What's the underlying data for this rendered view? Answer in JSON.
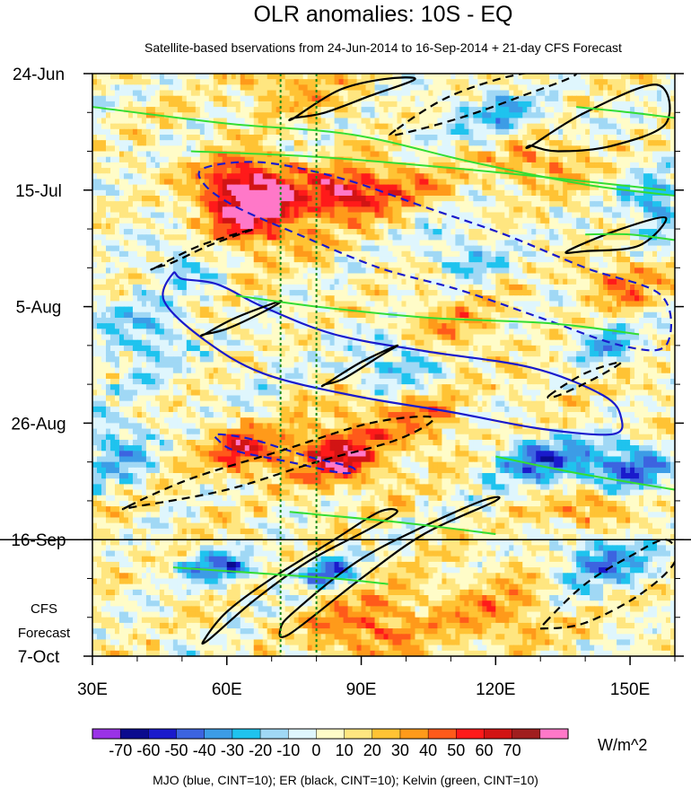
{
  "chart_data": {
    "type": "heatmap",
    "title": "OLR anomalies: 10S - EQ",
    "subtitle": "Satellite-based bservations from 24-Jun-2014 to 16-Sep-2014 + 21-day CFS Forecast",
    "xlabel": "",
    "ylabel": "",
    "x_range": [
      30,
      160
    ],
    "y_range": [
      0,
      105
    ],
    "y_unit": "days since 24-Jun-2014",
    "x_ticks": [
      {
        "value": 30,
        "label": "30E"
      },
      {
        "value": 60,
        "label": "60E"
      },
      {
        "value": 90,
        "label": "90E"
      },
      {
        "value": 120,
        "label": "120E"
      },
      {
        "value": 150,
        "label": "150E"
      }
    ],
    "y_ticks": [
      {
        "value": 0,
        "label": "24-Jun"
      },
      {
        "value": 21,
        "label": "15-Jul"
      },
      {
        "value": 42,
        "label": "5-Aug"
      },
      {
        "value": 63,
        "label": "26-Aug"
      },
      {
        "value": 84,
        "label": "16-Sep"
      },
      {
        "value": 105,
        "label": "7-Oct"
      }
    ],
    "forecast_start_day": 84,
    "forecast_label_line1": "CFS",
    "forecast_label_line2": "Forecast",
    "reference_longitudes": [
      72,
      80
    ],
    "colorbar": {
      "levels": [
        -70,
        -60,
        -50,
        -40,
        -30,
        -20,
        -10,
        0,
        10,
        20,
        30,
        40,
        50,
        60,
        70
      ],
      "labels": [
        "-70",
        "-60",
        "-50",
        "-40",
        "-30",
        "-20",
        "-10",
        "0",
        "10",
        "20",
        "30",
        "40",
        "50",
        "60",
        "70"
      ],
      "colors": [
        "#9a32e6",
        "#0b0b8e",
        "#1a1acc",
        "#3c64e0",
        "#3c9ce6",
        "#1fc3ee",
        "#a0d8f5",
        "#dff6fd",
        "#fffcc8",
        "#ffe680",
        "#ffc334",
        "#ff9a1a",
        "#ff5a1a",
        "#ff1a1a",
        "#d21414",
        "#a01e1e",
        "#ff78c8"
      ],
      "units": "W/m^2"
    },
    "footnote": "MJO (blue, CINT=10); ER (black, CINT=10); Kelvin (green, CINT=10)",
    "anomaly_blobs": [
      {
        "lon": 64,
        "day": 21,
        "value": 50,
        "sx": 7,
        "sy": 5
      },
      {
        "lon": 86,
        "day": 22,
        "value": 55,
        "sx": 6,
        "sy": 3
      },
      {
        "lon": 68,
        "day": 25,
        "value": 40,
        "sx": 9,
        "sy": 5
      },
      {
        "lon": 100,
        "day": 20,
        "value": 30,
        "sx": 8,
        "sy": 3
      },
      {
        "lon": 130,
        "day": 16,
        "value": 30,
        "sx": 8,
        "sy": 3
      },
      {
        "lon": 148,
        "day": 38,
        "value": 35,
        "sx": 6,
        "sy": 3
      },
      {
        "lon": 84,
        "day": 69,
        "value": 55,
        "sx": 8,
        "sy": 4
      },
      {
        "lon": 64,
        "day": 68,
        "value": 45,
        "sx": 5,
        "sy": 3
      },
      {
        "lon": 92,
        "day": 100,
        "value": 35,
        "sx": 10,
        "sy": 5
      },
      {
        "lon": 120,
        "day": 97,
        "value": 30,
        "sx": 8,
        "sy": 4
      },
      {
        "lon": 74,
        "day": 3,
        "value": 30,
        "sx": 8,
        "sy": 3
      },
      {
        "lon": 140,
        "day": 78,
        "value": 30,
        "sx": 7,
        "sy": 3
      },
      {
        "lon": 110,
        "day": 45,
        "value": 25,
        "sx": 8,
        "sy": 3
      },
      {
        "lon": 100,
        "day": 62,
        "value": 25,
        "sx": 10,
        "sy": 4
      },
      {
        "lon": 58,
        "day": 89,
        "value": -55,
        "sx": 5,
        "sy": 2
      },
      {
        "lon": 82,
        "day": 90,
        "value": -50,
        "sx": 5,
        "sy": 2
      },
      {
        "lon": 147,
        "day": 71,
        "value": -50,
        "sx": 9,
        "sy": 3
      },
      {
        "lon": 128,
        "day": 70,
        "value": -40,
        "sx": 7,
        "sy": 3
      },
      {
        "lon": 145,
        "day": 88,
        "value": -45,
        "sx": 7,
        "sy": 3
      },
      {
        "lon": 155,
        "day": 24,
        "value": -35,
        "sx": 5,
        "sy": 4
      },
      {
        "lon": 35,
        "day": 68,
        "value": -35,
        "sx": 5,
        "sy": 4
      },
      {
        "lon": 120,
        "day": 8,
        "value": -30,
        "sx": 9,
        "sy": 3
      },
      {
        "lon": 40,
        "day": 47,
        "value": -25,
        "sx": 8,
        "sy": 5
      },
      {
        "lon": 112,
        "day": 32,
        "value": -25,
        "sx": 7,
        "sy": 3
      },
      {
        "lon": 96,
        "day": 53,
        "value": -25,
        "sx": 7,
        "sy": 4
      },
      {
        "lon": 145,
        "day": 48,
        "value": -30,
        "sx": 5,
        "sy": 3
      },
      {
        "lon": 50,
        "day": 33,
        "value": -20,
        "sx": 6,
        "sy": 4
      }
    ],
    "contours": [
      {
        "series": "MJO",
        "color": "#1a1acc",
        "dashed": false,
        "points": [
          [
            50,
            37
          ],
          [
            58,
            38
          ],
          [
            68,
            42
          ],
          [
            84,
            47
          ],
          [
            104,
            50
          ],
          [
            128,
            53
          ],
          [
            144,
            58
          ],
          [
            148,
            62
          ],
          [
            146,
            65
          ],
          [
            130,
            64
          ],
          [
            110,
            61
          ],
          [
            88,
            58
          ],
          [
            68,
            54
          ],
          [
            55,
            48
          ],
          [
            46,
            41
          ],
          [
            48,
            36
          ]
        ]
      },
      {
        "series": "MJO",
        "color": "#1a1acc",
        "dashed": true,
        "points": [
          [
            55,
            17
          ],
          [
            68,
            16
          ],
          [
            86,
            19
          ],
          [
            104,
            24
          ],
          [
            122,
            29
          ],
          [
            140,
            35
          ],
          [
            157,
            40
          ],
          [
            158,
            49
          ],
          [
            148,
            49
          ],
          [
            130,
            44
          ],
          [
            112,
            39
          ],
          [
            94,
            35
          ],
          [
            76,
            29
          ],
          [
            62,
            24
          ],
          [
            55,
            20
          ]
        ]
      },
      {
        "series": "MJO",
        "color": "#1a1acc",
        "dashed": true,
        "points": [
          [
            58,
            65
          ],
          [
            66,
            66
          ],
          [
            78,
            69
          ],
          [
            88,
            71
          ],
          [
            86,
            72
          ],
          [
            74,
            70
          ],
          [
            62,
            68
          ],
          [
            58,
            66
          ]
        ]
      },
      {
        "series": "ER",
        "color": "#000000",
        "dashed": false,
        "points": [
          [
            56,
            102
          ],
          [
            66,
            95
          ],
          [
            78,
            88
          ],
          [
            92,
            82
          ],
          [
            98,
            79
          ],
          [
            94,
            79
          ],
          [
            84,
            84
          ],
          [
            70,
            91
          ],
          [
            60,
            97
          ],
          [
            55,
            102
          ]
        ]
      },
      {
        "series": "ER",
        "color": "#000000",
        "dashed": false,
        "points": [
          [
            74,
            101
          ],
          [
            90,
            91
          ],
          [
            104,
            83
          ],
          [
            120,
            77
          ],
          [
            117,
            77
          ],
          [
            103,
            82
          ],
          [
            89,
            88
          ],
          [
            75,
            97
          ],
          [
            72,
            100
          ]
        ]
      },
      {
        "series": "ER",
        "color": "#000000",
        "dashed": false,
        "points": [
          [
            128,
            13
          ],
          [
            140,
            7
          ],
          [
            156,
            2
          ],
          [
            158,
            9
          ],
          [
            146,
            13
          ],
          [
            134,
            14
          ],
          [
            128,
            13
          ]
        ]
      },
      {
        "series": "ER",
        "color": "#000000",
        "dashed": false,
        "points": [
          [
            136,
            32
          ],
          [
            148,
            28
          ],
          [
            158,
            26
          ],
          [
            152,
            31
          ],
          [
            140,
            32
          ]
        ]
      },
      {
        "series": "ER",
        "color": "#000000",
        "dashed": false,
        "points": [
          [
            75,
            8
          ],
          [
            85,
            3
          ],
          [
            95,
            1
          ],
          [
            102,
            1
          ],
          [
            92,
            4
          ],
          [
            82,
            7
          ],
          [
            75,
            8
          ]
        ]
      },
      {
        "series": "ER",
        "color": "#000000",
        "dashed": false,
        "points": [
          [
            55,
            47
          ],
          [
            62,
            44
          ],
          [
            72,
            41
          ],
          [
            68,
            43
          ],
          [
            60,
            46
          ],
          [
            55,
            47
          ]
        ]
      },
      {
        "series": "ER",
        "color": "#000000",
        "dashed": false,
        "points": [
          [
            82,
            56
          ],
          [
            90,
            52
          ],
          [
            98,
            49
          ],
          [
            94,
            51
          ],
          [
            86,
            55
          ],
          [
            82,
            56
          ]
        ]
      },
      {
        "series": "ER",
        "color": "#000000",
        "dashed": true,
        "points": [
          [
            98,
            10
          ],
          [
            110,
            4
          ],
          [
            126,
            0
          ],
          [
            138,
            0
          ],
          [
            126,
            4
          ],
          [
            112,
            8
          ],
          [
            98,
            11
          ]
        ]
      },
      {
        "series": "ER",
        "color": "#000000",
        "dashed": true,
        "points": [
          [
            44,
            35
          ],
          [
            54,
            31
          ],
          [
            66,
            28
          ],
          [
            56,
            31
          ],
          [
            48,
            34
          ],
          [
            44,
            35
          ]
        ]
      },
      {
        "series": "ER",
        "color": "#000000",
        "dashed": true,
        "points": [
          [
            38,
            78
          ],
          [
            52,
            73
          ],
          [
            72,
            68
          ],
          [
            92,
            63
          ],
          [
            106,
            62
          ],
          [
            98,
            66
          ],
          [
            80,
            70
          ],
          [
            60,
            75
          ],
          [
            40,
            78
          ]
        ]
      },
      {
        "series": "ER",
        "color": "#000000",
        "dashed": true,
        "points": [
          [
            131,
            99
          ],
          [
            140,
            92
          ],
          [
            150,
            87
          ],
          [
            158,
            84
          ],
          [
            160,
            88
          ],
          [
            152,
            94
          ],
          [
            140,
            99
          ],
          [
            131,
            100
          ]
        ]
      },
      {
        "series": "ER",
        "color": "#000000",
        "dashed": true,
        "points": [
          [
            132,
            58
          ],
          [
            140,
            54
          ],
          [
            148,
            52
          ],
          [
            142,
            55
          ],
          [
            134,
            58
          ]
        ]
      },
      {
        "series": "Kelvin",
        "color": "#33dd33",
        "dashed": false,
        "points": [
          [
            30,
            6
          ],
          [
            60,
            9
          ],
          [
            88,
            11
          ],
          [
            115,
            16
          ],
          [
            140,
            20
          ],
          [
            160,
            22
          ]
        ]
      },
      {
        "series": "Kelvin",
        "color": "#33dd33",
        "dashed": false,
        "points": [
          [
            52,
            14
          ],
          [
            80,
            15
          ],
          [
            110,
            17
          ],
          [
            135,
            19
          ],
          [
            158,
            21
          ]
        ]
      },
      {
        "series": "Kelvin",
        "color": "#33dd33",
        "dashed": false,
        "points": [
          [
            62,
            40
          ],
          [
            80,
            42
          ],
          [
            105,
            44
          ],
          [
            132,
            45
          ],
          [
            152,
            47
          ]
        ]
      },
      {
        "series": "Kelvin",
        "color": "#33dd33",
        "dashed": false,
        "points": [
          [
            120,
            69
          ],
          [
            138,
            72
          ],
          [
            160,
            75
          ]
        ]
      },
      {
        "series": "Kelvin",
        "color": "#33dd33",
        "dashed": false,
        "points": [
          [
            48,
            89
          ],
          [
            66,
            90
          ],
          [
            84,
            91
          ],
          [
            96,
            92
          ]
        ]
      },
      {
        "series": "Kelvin",
        "color": "#33dd33",
        "dashed": false,
        "points": [
          [
            74,
            79
          ],
          [
            100,
            81
          ],
          [
            120,
            83
          ]
        ]
      },
      {
        "series": "Kelvin",
        "color": "#33dd33",
        "dashed": false,
        "points": [
          [
            138,
            6
          ],
          [
            150,
            7
          ],
          [
            160,
            8
          ]
        ]
      },
      {
        "series": "Kelvin",
        "color": "#33dd33",
        "dashed": false,
        "points": [
          [
            140,
            29
          ],
          [
            150,
            29
          ],
          [
            160,
            30
          ]
        ]
      }
    ]
  }
}
